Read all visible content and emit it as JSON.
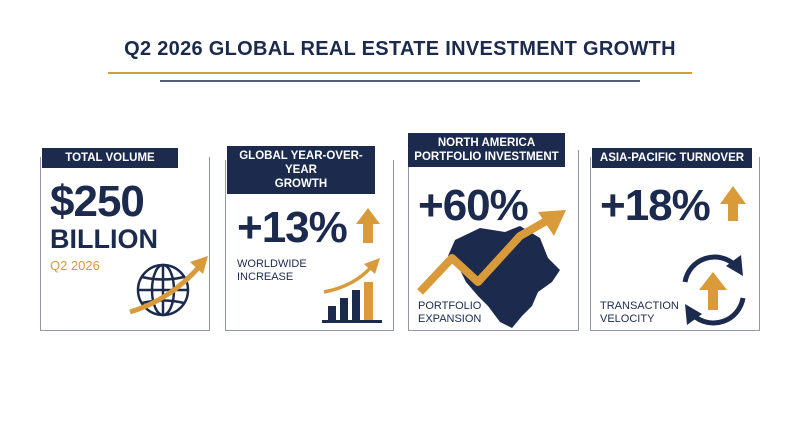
{
  "title": "Q2 2026 GLOBAL REAL ESTATE INVESTMENT GROWTH",
  "cards": [
    {
      "label": [
        "TOTAL VOLUME"
      ],
      "value": "$250",
      "unit": "BILLION",
      "note": "Q2 2026"
    },
    {
      "label": [
        "GLOBAL YEAR-OVER-YEAR",
        "GROWTH"
      ],
      "value": "+13%",
      "caption": [
        "WORLDWIDE",
        "INCREASE"
      ]
    },
    {
      "label": [
        "NORTH AMERICA",
        "PORTFOLIO INVESTMENT"
      ],
      "value": "+60%",
      "caption": [
        "PORTFOLIO",
        "EXPANSION"
      ]
    },
    {
      "label": [
        "ASIA-PACIFIC TURNOVER"
      ],
      "value": "+18%",
      "caption": [
        "TRANSACTION",
        "VELOCITY"
      ]
    }
  ]
}
